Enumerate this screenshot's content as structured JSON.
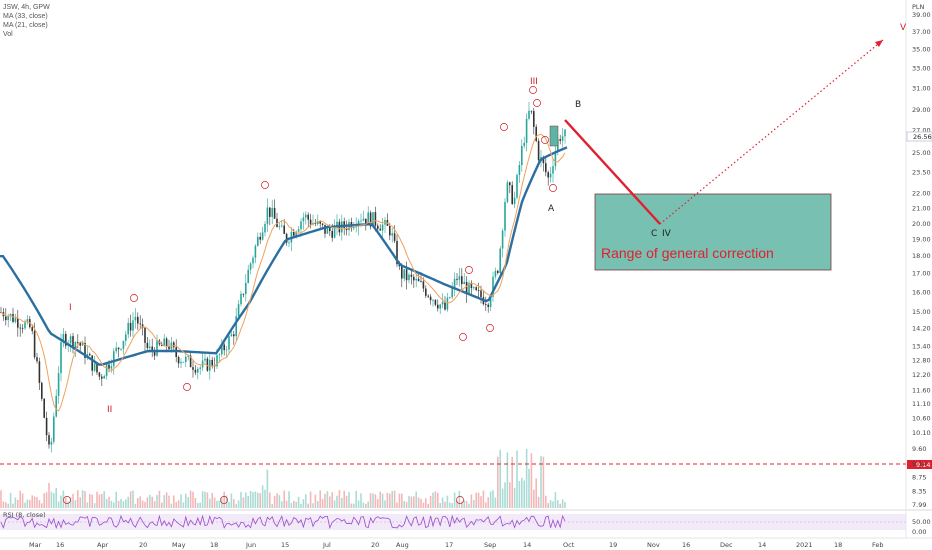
{
  "legend": {
    "symbol_line": "JSW, 4h, GPW",
    "ma_slow": "MA (33, close)",
    "ma_fast": "MA (21, close)",
    "volume": "Vol"
  },
  "rsi_label": "RSI (8, close)",
  "price_axis_currency": "PLN",
  "last_price_tag": "26.56",
  "support_price_tag": "9.14",
  "colors": {
    "up": "#26a69a",
    "down": "#333333",
    "ma_slow": "#2b6fa0",
    "ma_fast": "#f0a15a",
    "annotation": "#cc1f2a",
    "correction_box": "#5fb5a5",
    "rsi": "#9b4dca"
  },
  "chart_data": {
    "type": "candlestick",
    "title": "",
    "x_axis_labels": [
      "Mar",
      "16",
      "Apr",
      "20",
      "May",
      "18",
      "Jun",
      "15",
      "Jul",
      "20",
      "Aug",
      "17",
      "Sep",
      "14",
      "Oct",
      "19",
      "Nov",
      "16",
      "Dec",
      "14",
      "2021",
      "18",
      "Feb"
    ],
    "price_axis_ticks": [
      7.99,
      8.35,
      8.75,
      9.14,
      9.6,
      10.1,
      10.6,
      11.1,
      11.6,
      12.2,
      12.8,
      13.4,
      14.2,
      15.0,
      16.0,
      17.0,
      18.0,
      19.0,
      20.0,
      21.0,
      22.0,
      23.5,
      25.0,
      26.56,
      27.0,
      29.0,
      31.0,
      33.0,
      35.0,
      37.0,
      39.0
    ],
    "rsi_axis_ticks": [
      50.0,
      0.0
    ],
    "price_path": [
      {
        "x": "Mar",
        "y": 15.0
      },
      {
        "x": "Mar 10",
        "y": 14.2
      },
      {
        "x": "Mar 13",
        "y": 11.5
      },
      {
        "x": "Mar 16",
        "y": 9.3
      },
      {
        "x": "Mar 20",
        "y": 13.8
      },
      {
        "x": "Mar 25",
        "y": 13.6
      },
      {
        "x": "Apr",
        "y": 12.1
      },
      {
        "x": "Apr 8",
        "y": 13.3
      },
      {
        "x": "Apr 15",
        "y": 14.8
      },
      {
        "x": "Apr 20",
        "y": 13.2
      },
      {
        "x": "Apr 28",
        "y": 13.5
      },
      {
        "x": "May",
        "y": 13.0
      },
      {
        "x": "May 11",
        "y": 12.5
      },
      {
        "x": "May 18",
        "y": 12.8
      },
      {
        "x": "May 25",
        "y": 14.0
      },
      {
        "x": "Jun",
        "y": 17.5
      },
      {
        "x": "Jun 8",
        "y": 21.0
      },
      {
        "x": "Jun 15",
        "y": 19.0
      },
      {
        "x": "Jun 22",
        "y": 20.5
      },
      {
        "x": "Jul",
        "y": 19.5
      },
      {
        "x": "Jul 8",
        "y": 19.8
      },
      {
        "x": "Jul 15",
        "y": 20.5
      },
      {
        "x": "Jul 20",
        "y": 20.3
      },
      {
        "x": "Jul 28",
        "y": 19.6
      },
      {
        "x": "Aug",
        "y": 17.0
      },
      {
        "x": "Aug 8",
        "y": 16.4
      },
      {
        "x": "Aug 17",
        "y": 15.1
      },
      {
        "x": "Aug 21",
        "y": 16.8
      },
      {
        "x": "Aug 26",
        "y": 16.0
      },
      {
        "x": "Sep",
        "y": 15.6
      },
      {
        "x": "Sep 5",
        "y": 17.5
      },
      {
        "x": "Sep 8",
        "y": 22.5
      },
      {
        "x": "Sep 11",
        "y": 21.5
      },
      {
        "x": "Sep 14",
        "y": 25.5
      },
      {
        "x": "Sep 17",
        "y": 29.2
      },
      {
        "x": "Sep 20",
        "y": 25.0
      },
      {
        "x": "Sep 24",
        "y": 23.0
      },
      {
        "x": "Sep 28",
        "y": 26.5
      },
      {
        "x": "Oct",
        "y": 26.56
      }
    ],
    "ma_33_path": [
      {
        "x": "Mar",
        "y": 18.0
      },
      {
        "x": "Mar 16",
        "y": 14.0
      },
      {
        "x": "Apr",
        "y": 12.6
      },
      {
        "x": "Apr 20",
        "y": 13.2
      },
      {
        "x": "May",
        "y": 13.2
      },
      {
        "x": "May 18",
        "y": 13.1
      },
      {
        "x": "Jun",
        "y": 15.5
      },
      {
        "x": "Jun 15",
        "y": 19.0
      },
      {
        "x": "Jul",
        "y": 19.8
      },
      {
        "x": "Jul 20",
        "y": 20.0
      },
      {
        "x": "Aug",
        "y": 17.5
      },
      {
        "x": "Aug 17",
        "y": 16.4
      },
      {
        "x": "Sep",
        "y": 15.5
      },
      {
        "x": "Sep 8",
        "y": 17.5
      },
      {
        "x": "Sep 14",
        "y": 21.5
      },
      {
        "x": "Sep 21",
        "y": 24.5
      },
      {
        "x": "Oct",
        "y": 25.5
      }
    ],
    "annotations": {
      "waves": [
        "I",
        "II",
        "III",
        "IV",
        "V"
      ],
      "abc": [
        "A",
        "B",
        "C"
      ],
      "note": "Range of general correction",
      "correction_range": [
        17.2,
        22.0
      ],
      "projected_low": 20.0,
      "projected_target": 35.5,
      "support_level": 9.14
    },
    "grid": false,
    "legend_position": "top-left"
  }
}
